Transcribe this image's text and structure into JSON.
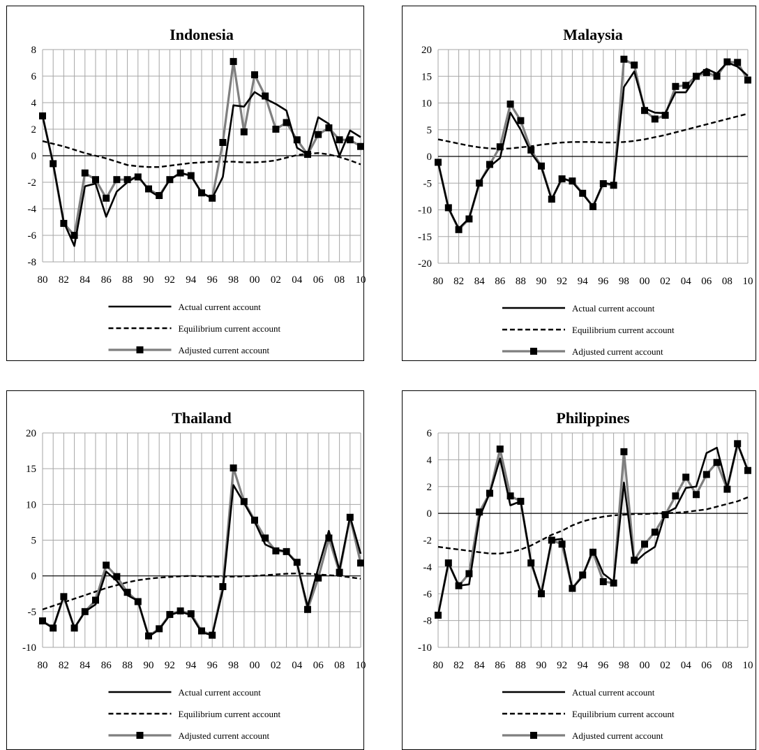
{
  "legend": {
    "actual": "Actual current account",
    "equilibrium": "Equilibrium current account",
    "adjusted": "Adjusted current account"
  },
  "colors": {
    "actual": "#000000",
    "equilibrium": "#000000",
    "adjusted": "#7f7f7f",
    "marker": "#000000",
    "grid": "#a6a6a6",
    "axis": "#000000"
  },
  "chart_data": [
    {
      "type": "line",
      "title": "Indonesia",
      "ylim": [
        -8,
        8
      ],
      "ytick_step": 2,
      "xlim": [
        80,
        110
      ],
      "x_tick_labels": [
        "80",
        "82",
        "84",
        "86",
        "88",
        "90",
        "92",
        "94",
        "96",
        "98",
        "00",
        "02",
        "04",
        "06",
        "08",
        "10"
      ],
      "grid": true,
      "legend_position": "bottom",
      "x": [
        80,
        81,
        82,
        83,
        84,
        85,
        86,
        87,
        88,
        89,
        90,
        91,
        92,
        93,
        94,
        95,
        96,
        97,
        98,
        99,
        100,
        101,
        102,
        103,
        104,
        105,
        106,
        107,
        108,
        109,
        110
      ],
      "series": [
        {
          "name": "Actual current account",
          "key": "actual",
          "values": [
            3.0,
            -0.6,
            -5.0,
            -6.8,
            -2.3,
            -2.1,
            -4.6,
            -2.7,
            -2.0,
            -1.5,
            -2.6,
            -3.1,
            -1.8,
            -1.3,
            -1.5,
            -2.8,
            -3.2,
            -1.6,
            3.8,
            3.7,
            4.8,
            4.3,
            3.9,
            3.4,
            0.6,
            0.1,
            2.9,
            2.4,
            0.0,
            1.9,
            1.4
          ]
        },
        {
          "name": "Equilibrium current account",
          "key": "equilibrium",
          "values": [
            1.1,
            0.9,
            0.7,
            0.45,
            0.2,
            0.0,
            -0.2,
            -0.45,
            -0.7,
            -0.8,
            -0.85,
            -0.85,
            -0.75,
            -0.65,
            -0.55,
            -0.5,
            -0.45,
            -0.45,
            -0.45,
            -0.5,
            -0.5,
            -0.45,
            -0.35,
            -0.15,
            0.05,
            0.15,
            0.2,
            0.1,
            -0.1,
            -0.35,
            -0.65
          ]
        },
        {
          "name": "Adjusted current account",
          "key": "adjusted",
          "values": [
            3.0,
            -0.6,
            -5.1,
            -6.0,
            -1.3,
            -1.8,
            -3.2,
            -1.8,
            -1.8,
            -1.6,
            -2.5,
            -3.0,
            -1.8,
            -1.3,
            -1.5,
            -2.8,
            -3.2,
            1.0,
            7.1,
            1.8,
            6.1,
            4.5,
            2.0,
            2.5,
            1.2,
            0.1,
            1.6,
            2.1,
            1.2,
            1.2,
            0.7
          ]
        }
      ]
    },
    {
      "type": "line",
      "title": "Malaysia",
      "ylim": [
        -20,
        20
      ],
      "ytick_step": 5,
      "xlim": [
        80,
        110
      ],
      "x_tick_labels": [
        "80",
        "82",
        "84",
        "86",
        "88",
        "90",
        "92",
        "94",
        "96",
        "98",
        "00",
        "02",
        "04",
        "06",
        "08",
        "10"
      ],
      "grid": true,
      "legend_position": "bottom",
      "x": [
        80,
        81,
        82,
        83,
        84,
        85,
        86,
        87,
        88,
        89,
        90,
        91,
        92,
        93,
        94,
        95,
        96,
        97,
        98,
        99,
        100,
        101,
        102,
        103,
        104,
        105,
        106,
        107,
        108,
        109,
        110
      ],
      "series": [
        {
          "name": "Actual current account",
          "key": "actual",
          "values": [
            -1.1,
            -9.7,
            -13.5,
            -11.6,
            -4.9,
            -1.9,
            -0.3,
            8.2,
            5.0,
            0.7,
            -2.0,
            -8.1,
            -4.0,
            -4.8,
            -7.0,
            -9.4,
            -4.9,
            -5.3,
            13.0,
            15.9,
            9.0,
            8.2,
            8.1,
            12.0,
            12.0,
            14.9,
            16.4,
            15.5,
            17.6,
            16.8,
            15.1
          ]
        },
        {
          "name": "Equilibrium current account",
          "key": "equilibrium",
          "values": [
            3.2,
            2.8,
            2.4,
            2.0,
            1.7,
            1.5,
            1.4,
            1.5,
            1.7,
            1.9,
            2.2,
            2.4,
            2.6,
            2.7,
            2.7,
            2.7,
            2.6,
            2.6,
            2.7,
            2.9,
            3.2,
            3.6,
            4.0,
            4.5,
            5.0,
            5.5,
            6.0,
            6.5,
            7.0,
            7.5,
            8.0
          ]
        },
        {
          "name": "Adjusted current account",
          "key": "adjusted",
          "values": [
            -1.1,
            -9.6,
            -13.7,
            -11.7,
            -5.0,
            -1.5,
            1.8,
            9.8,
            6.7,
            1.2,
            -1.8,
            -8.0,
            -4.2,
            -4.6,
            -6.9,
            -9.4,
            -5.1,
            -5.4,
            18.2,
            17.1,
            8.6,
            7.0,
            7.7,
            13.1,
            13.3,
            15.0,
            15.7,
            15.0,
            17.7,
            17.6,
            14.3
          ]
        }
      ]
    },
    {
      "type": "line",
      "title": "Thailand",
      "ylim": [
        -10,
        20
      ],
      "ytick_step": 5,
      "xlim": [
        80,
        110
      ],
      "x_tick_labels": [
        "80",
        "82",
        "84",
        "86",
        "88",
        "90",
        "92",
        "94",
        "96",
        "98",
        "00",
        "02",
        "04",
        "06",
        "08",
        "10"
      ],
      "grid": true,
      "legend_position": "bottom",
      "x": [
        80,
        81,
        82,
        83,
        84,
        85,
        86,
        87,
        88,
        89,
        90,
        91,
        92,
        93,
        94,
        95,
        96,
        97,
        98,
        99,
        100,
        101,
        102,
        103,
        104,
        105,
        106,
        107,
        108,
        109,
        110
      ],
      "series": [
        {
          "name": "Actual current account",
          "key": "actual",
          "values": [
            -6.4,
            -7.3,
            -2.8,
            -7.3,
            -5.0,
            -4.0,
            0.6,
            -0.7,
            -2.7,
            -3.5,
            -8.5,
            -7.5,
            -5.5,
            -5.0,
            -5.5,
            -7.9,
            -8.3,
            -2.0,
            12.7,
            10.2,
            7.6,
            4.4,
            3.7,
            3.4,
            1.7,
            -4.3,
            1.1,
            6.3,
            0.8,
            8.3,
            3.1
          ]
        },
        {
          "name": "Equilibrium current account",
          "key": "equilibrium",
          "values": [
            -4.7,
            -4.2,
            -3.7,
            -3.2,
            -2.7,
            -2.2,
            -1.7,
            -1.3,
            -0.9,
            -0.6,
            -0.4,
            -0.25,
            -0.15,
            -0.05,
            0.0,
            -0.05,
            -0.1,
            -0.1,
            -0.1,
            -0.05,
            0.0,
            0.1,
            0.2,
            0.3,
            0.35,
            0.3,
            0.2,
            0.1,
            0.0,
            -0.2,
            -0.4
          ]
        },
        {
          "name": "Adjusted current account",
          "key": "adjusted",
          "values": [
            -6.3,
            -7.3,
            -2.9,
            -7.3,
            -5.0,
            -3.4,
            1.5,
            -0.1,
            -2.3,
            -3.6,
            -8.4,
            -7.4,
            -5.4,
            -4.9,
            -5.3,
            -7.7,
            -8.3,
            -1.5,
            15.1,
            10.4,
            7.8,
            5.3,
            3.5,
            3.4,
            1.9,
            -4.7,
            -0.3,
            5.3,
            0.5,
            8.2,
            1.8
          ]
        }
      ]
    },
    {
      "type": "line",
      "title": "Philippines",
      "ylim": [
        -10,
        6
      ],
      "ytick_step": 2,
      "xlim": [
        80,
        110
      ],
      "x_tick_labels": [
        "80",
        "82",
        "84",
        "86",
        "88",
        "90",
        "92",
        "94",
        "96",
        "98",
        "00",
        "02",
        "04",
        "06",
        "08",
        "10"
      ],
      "grid": true,
      "legend_position": "bottom",
      "x": [
        80,
        81,
        82,
        83,
        84,
        85,
        86,
        87,
        88,
        89,
        90,
        91,
        92,
        93,
        94,
        95,
        96,
        97,
        98,
        99,
        100,
        101,
        102,
        103,
        104,
        105,
        106,
        107,
        108,
        109,
        110
      ],
      "series": [
        {
          "name": "Actual current account",
          "key": "actual",
          "values": [
            -7.6,
            -3.7,
            -5.4,
            -5.3,
            -0.3,
            1.5,
            4.1,
            0.6,
            0.9,
            -3.6,
            -6.0,
            -2.0,
            -1.9,
            -5.6,
            -4.7,
            -2.7,
            -4.5,
            -5.1,
            2.3,
            -3.7,
            -3.0,
            -2.5,
            0.0,
            0.4,
            1.9,
            2.0,
            4.5,
            4.9,
            1.9,
            5.2,
            3.2
          ]
        },
        {
          "name": "Equilibrium current account",
          "key": "equilibrium",
          "values": [
            -2.5,
            -2.6,
            -2.7,
            -2.8,
            -2.9,
            -3.0,
            -3.0,
            -2.9,
            -2.7,
            -2.4,
            -2.0,
            -1.6,
            -1.3,
            -0.9,
            -0.6,
            -0.4,
            -0.25,
            -0.15,
            -0.1,
            -0.05,
            -0.05,
            0.0,
            0.0,
            0.05,
            0.1,
            0.2,
            0.3,
            0.5,
            0.7,
            0.9,
            1.2
          ]
        },
        {
          "name": "Adjusted current account",
          "key": "adjusted",
          "values": [
            -7.6,
            -3.7,
            -5.4,
            -4.5,
            0.1,
            1.5,
            4.8,
            1.3,
            0.9,
            -3.7,
            -6.0,
            -2.0,
            -2.3,
            -5.6,
            -4.6,
            -2.9,
            -5.1,
            -5.2,
            4.6,
            -3.5,
            -2.3,
            -1.4,
            -0.1,
            1.3,
            2.7,
            1.4,
            2.9,
            3.8,
            1.8,
            5.2,
            3.2
          ]
        }
      ]
    }
  ]
}
